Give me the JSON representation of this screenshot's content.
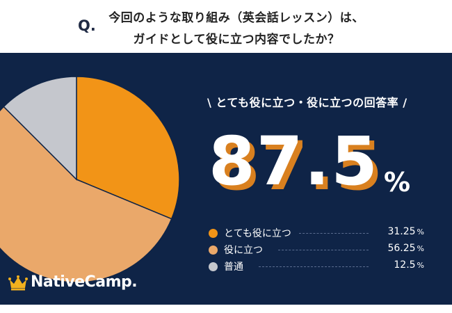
{
  "header": {
    "q_mark": "Q.",
    "line1": "今回のような取り組み（英会話レッスン）は、",
    "line2": "ガイドとして役に立つ内容でしたか？"
  },
  "summary": {
    "subtitle": "\\ とても役に立つ・役に立つの回答率 /",
    "big_number": "87.5",
    "big_unit": "%"
  },
  "colors": {
    "background": "#0f2447",
    "very_useful": "#f29417",
    "useful": "#eaa86a",
    "neutral": "#c5c7cd",
    "big_number_shadow": "#d9801f"
  },
  "logo": {
    "text": "NativeCamp.",
    "icon": "crown-icon"
  },
  "chart_data": {
    "type": "pie",
    "title": "",
    "categories": [
      "とても役に立つ",
      "役に立つ",
      "普通"
    ],
    "values": [
      31.25,
      56.25,
      12.5
    ],
    "unit": "%",
    "value_labels": [
      "31.25",
      "56.25",
      "12.5"
    ],
    "colors": [
      "#f29417",
      "#eaa86a",
      "#c5c7cd"
    ],
    "start": "12 o'clock",
    "direction": "clockwise",
    "legend_position": "right"
  }
}
